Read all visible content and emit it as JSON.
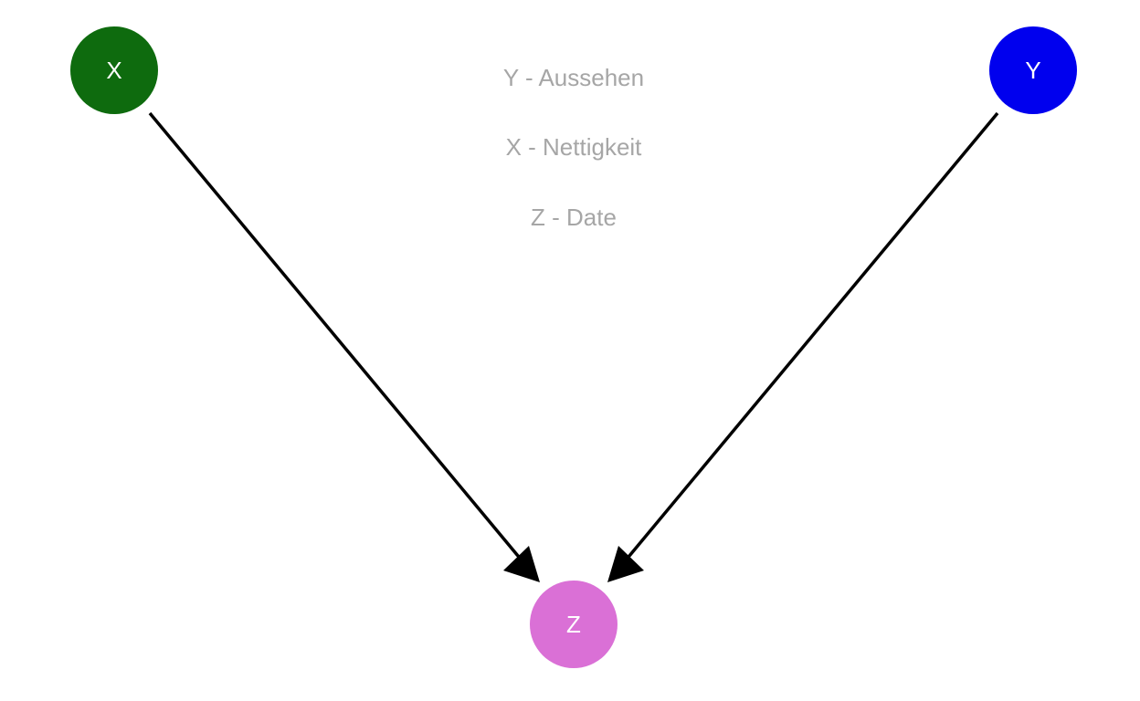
{
  "nodes": {
    "x": {
      "label": "X",
      "color": "#0e6b0e"
    },
    "y": {
      "label": "Y",
      "color": "#0000ee"
    },
    "z": {
      "label": "Z",
      "color": "#da70d6"
    }
  },
  "edges": [
    {
      "from": "X",
      "to": "Z"
    },
    {
      "from": "Y",
      "to": "Z"
    }
  ],
  "legend": {
    "y": "Y - Aussehen",
    "x": "X - Nettigkeit",
    "z": "Z - Date"
  },
  "colors": {
    "edge": "#000000",
    "legend_text": "#a6a6a6"
  }
}
